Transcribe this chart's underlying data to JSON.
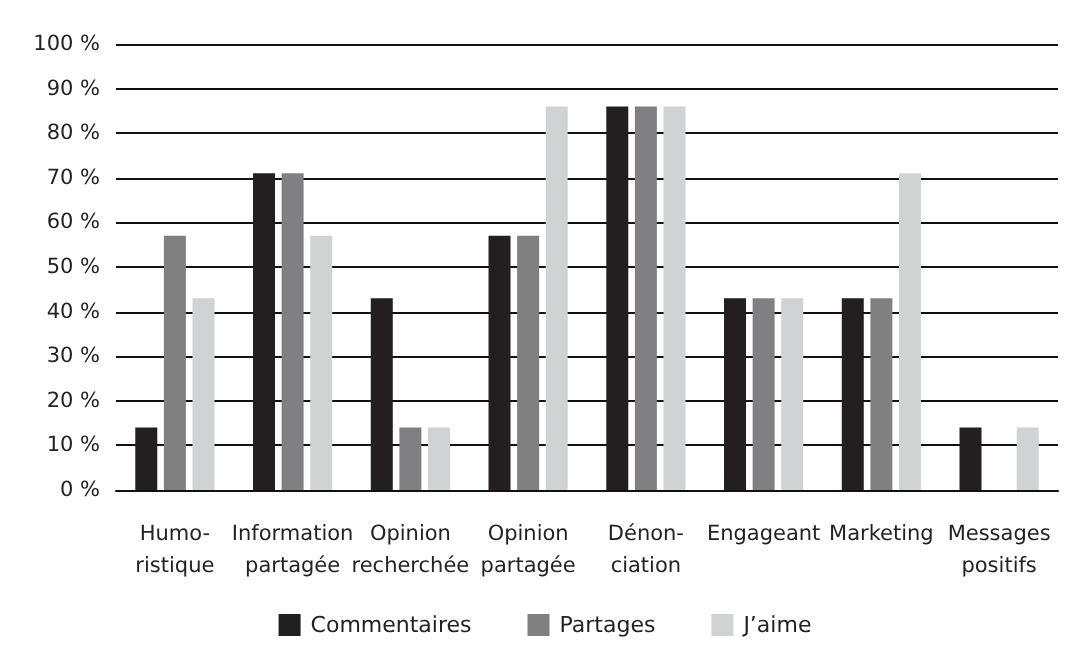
{
  "chart_data": {
    "type": "bar",
    "categories": [
      "Humo-\nristique",
      "Information\npartagée",
      "Opinion\nrecherchée",
      "Opinion\npartagée",
      "Dénon-\nciation",
      "Engageant",
      "Marketing",
      "Messages\npositifs"
    ],
    "series": [
      {
        "name": "Commentaires",
        "color": "#231f20",
        "values": [
          14,
          71,
          43,
          57,
          86,
          43,
          43,
          14
        ]
      },
      {
        "name": "Partages",
        "color": "#808083",
        "values": [
          57,
          71,
          14,
          57,
          86,
          43,
          43,
          0
        ]
      },
      {
        "name": "J’aime",
        "color": "#d1d2d4",
        "values": [
          43,
          57,
          14,
          86,
          86,
          43,
          71,
          14
        ]
      }
    ],
    "ylim": [
      0,
      100
    ],
    "yticks": [
      {
        "value": 0,
        "label": "0 %"
      },
      {
        "value": 10,
        "label": "10 %"
      },
      {
        "value": 20,
        "label": "20 %"
      },
      {
        "value": 30,
        "label": "30 %"
      },
      {
        "value": 40,
        "label": "40 %"
      },
      {
        "value": 50,
        "label": "50 %"
      },
      {
        "value": 60,
        "label": "60 %"
      },
      {
        "value": 70,
        "label": "70 %"
      },
      {
        "value": 80,
        "label": "80 %"
      },
      {
        "value": 90,
        "label": "90 %"
      },
      {
        "value": 100,
        "label": "100 %"
      }
    ],
    "grid": "y",
    "legend": "bottom"
  }
}
